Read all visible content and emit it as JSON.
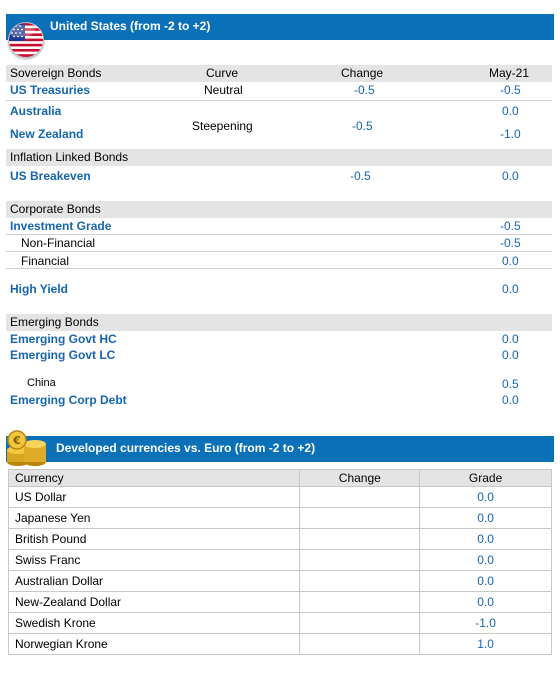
{
  "bonds_panel": {
    "title": "United States (from -2 to +2)",
    "columns": {
      "curve": "Curve",
      "change": "Change",
      "month": "May-21"
    },
    "sovereign": {
      "label": "Sovereign Bonds",
      "rows": [
        {
          "name": "US Treasuries",
          "curve": "Neutral",
          "change": "-0.5",
          "value": "-0.5"
        },
        {
          "name": "Australia",
          "value": "0.0"
        },
        {
          "name": "New Zealand",
          "value": "-1.0"
        }
      ],
      "group_curve": "Steepening",
      "group_change": "-0.5"
    },
    "inflation": {
      "label": "Inflation Linked Bonds",
      "rows": [
        {
          "name": "US Breakeven",
          "change": "-0.5",
          "value": "0.0"
        }
      ]
    },
    "corporate": {
      "label": "Corporate Bonds",
      "rows": [
        {
          "name": "Investment Grade",
          "value": "-0.5"
        },
        {
          "name": "Non-Financial",
          "value": "-0.5"
        },
        {
          "name": "Financial",
          "value": "0.0"
        },
        {
          "name": "High Yield",
          "value": "0.0"
        }
      ]
    },
    "emerging": {
      "label": "Emerging Bonds",
      "rows": [
        {
          "name": "Emerging Govt HC",
          "value": "0.0"
        },
        {
          "name": "Emerging Govt LC",
          "value": "0.0"
        },
        {
          "name": "China",
          "value": "0.5"
        },
        {
          "name": "Emerging Corp Debt",
          "value": "0.0"
        }
      ]
    }
  },
  "currency_panel": {
    "title": "Developed currencies vs. Euro (from -2 to +2)",
    "columns": {
      "currency": "Currency",
      "change": "Change",
      "grade": "Grade"
    },
    "rows": [
      {
        "name": "US Dollar",
        "change": "",
        "grade": "0.0"
      },
      {
        "name": "Japanese Yen",
        "change": "",
        "grade": "0.0"
      },
      {
        "name": "British Pound",
        "change": "",
        "grade": "0.0"
      },
      {
        "name": "Swiss Franc",
        "change": "",
        "grade": "0.0"
      },
      {
        "name": "Australian Dollar",
        "change": "",
        "grade": "0.0"
      },
      {
        "name": "New-Zealand Dollar",
        "change": "",
        "grade": "0.0"
      },
      {
        "name": "Swedish Krone",
        "change": "",
        "grade": "-1.0"
      },
      {
        "name": "Norwegian Krone",
        "change": "",
        "grade": "1.0"
      }
    ]
  },
  "colors": {
    "banner": "#0a70b8",
    "accent_text": "#1565b0",
    "section_bg": "#e4e4e4"
  },
  "icons": {
    "bonds_panel": "us-flag-icon",
    "currency_panel": "gold-coins-icon"
  }
}
